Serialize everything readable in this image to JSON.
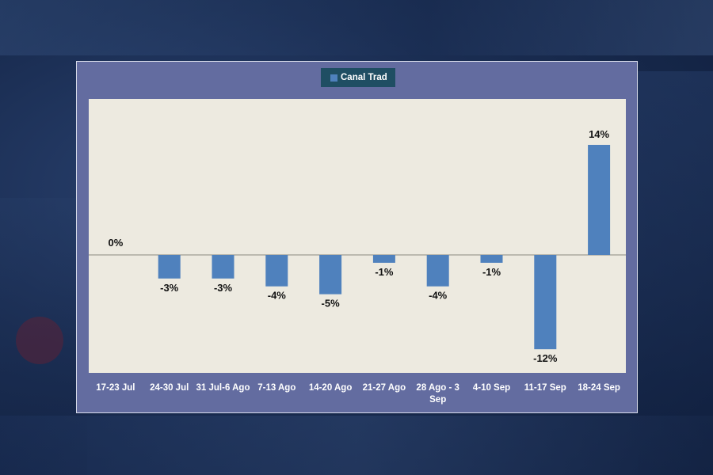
{
  "chart_data": {
    "type": "bar",
    "legend": {
      "position": "top-center",
      "entries": [
        "Canal Trad"
      ]
    },
    "categories": [
      "17-23 Jul",
      "24-30 Jul",
      "31 Jul-6 Ago",
      "7-13 Ago",
      "14-20 Ago",
      "21-27 Ago",
      "28 Ago - 3 Sep",
      "4-10 Sep",
      "11-17 Sep",
      "18-24 Sep"
    ],
    "category_lines": [
      [
        "17-23 Jul"
      ],
      [
        "24-30 Jul"
      ],
      [
        "31 Jul-6 Ago"
      ],
      [
        "7-13 Ago"
      ],
      [
        "14-20 Ago"
      ],
      [
        "21-27 Ago"
      ],
      [
        "28 Ago - 3",
        "Sep"
      ],
      [
        "4-10 Sep"
      ],
      [
        "11-17 Sep"
      ],
      [
        "18-24 Sep"
      ]
    ],
    "series": [
      {
        "name": "Canal Trad",
        "color": "#4f81bd",
        "values": [
          0,
          -3,
          -3,
          -4,
          -5,
          -1,
          -4,
          -1,
          -12,
          14
        ],
        "data_labels": [
          "0%",
          "-3%",
          "-3%",
          "-4%",
          "-5%",
          "-1%",
          "-4%",
          "-1%",
          "-12%",
          "14%"
        ]
      }
    ],
    "ylim": [
      -15,
      20
    ],
    "grid": false,
    "colors": {
      "plot_background": "#edeae0",
      "panel": "#636ca0",
      "legend_background": "#1f4e63"
    }
  }
}
